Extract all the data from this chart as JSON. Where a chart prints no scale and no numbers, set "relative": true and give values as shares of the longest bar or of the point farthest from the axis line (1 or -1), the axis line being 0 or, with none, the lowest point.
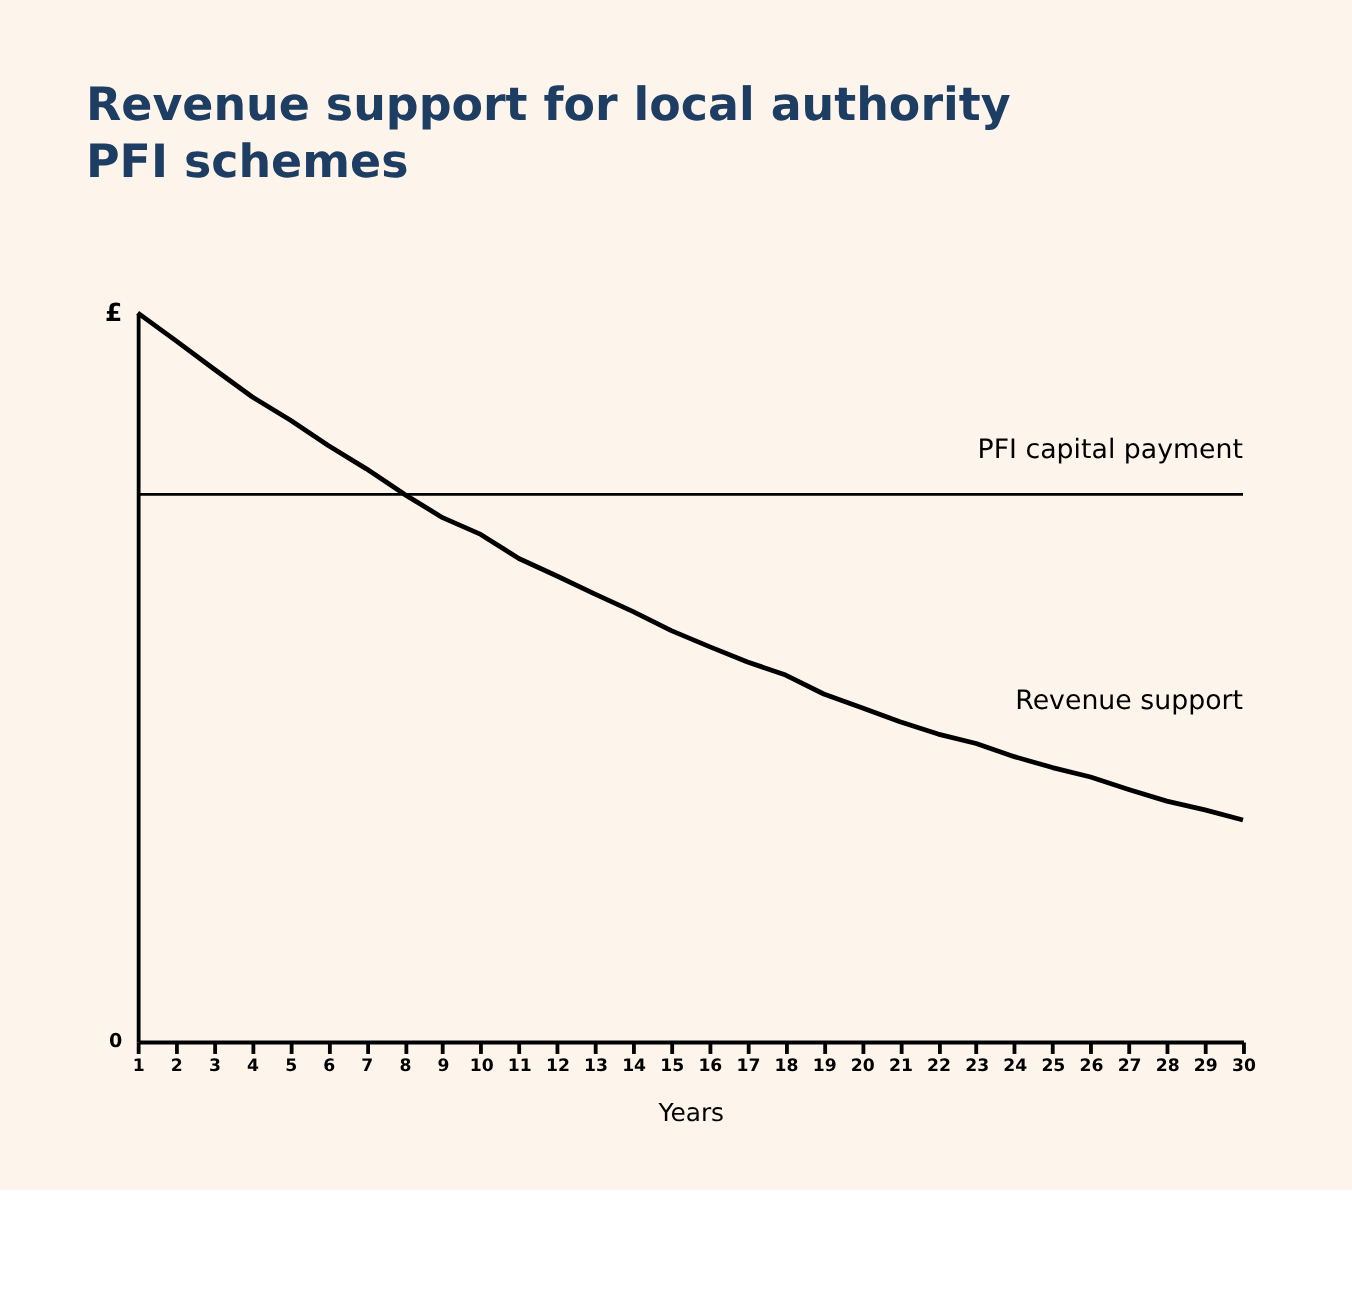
{
  "chart_data": {
    "type": "line",
    "title": "Revenue support for local authority PFI schemes",
    "xlabel": "Years",
    "ylabel": "£",
    "annotations": [
      "0"
    ],
    "relative": true,
    "legend": false,
    "grid": false,
    "marker": "none",
    "line_style": "solid",
    "x": [
      1,
      2,
      3,
      4,
      5,
      6,
      7,
      8,
      9,
      10,
      11,
      12,
      13,
      14,
      15,
      16,
      17,
      18,
      19,
      20,
      21,
      22,
      23,
      24,
      25,
      26,
      27,
      28,
      29,
      30
    ],
    "xlim": [
      1,
      30
    ],
    "xticks": [
      1,
      2,
      3,
      4,
      5,
      6,
      7,
      8,
      9,
      10,
      11,
      12,
      13,
      14,
      15,
      16,
      17,
      18,
      19,
      20,
      21,
      22,
      23,
      24,
      25,
      26,
      27,
      28,
      29,
      30
    ],
    "series": [
      {
        "name": "Revenue support",
        "color": "#000000",
        "values": [
          1.0,
          0.962,
          0.923,
          0.885,
          0.853,
          0.818,
          0.786,
          0.751,
          0.719,
          0.696,
          0.663,
          0.639,
          0.614,
          0.59,
          0.564,
          0.542,
          0.521,
          0.503,
          0.477,
          0.458,
          0.439,
          0.422,
          0.409,
          0.391,
          0.376,
          0.363,
          0.346,
          0.33,
          0.318,
          0.304
        ]
      },
      {
        "name": "PFI capital payment",
        "color": "#000000",
        "x": [
          1,
          30
        ],
        "values": [
          0.751,
          0.751
        ]
      }
    ]
  }
}
